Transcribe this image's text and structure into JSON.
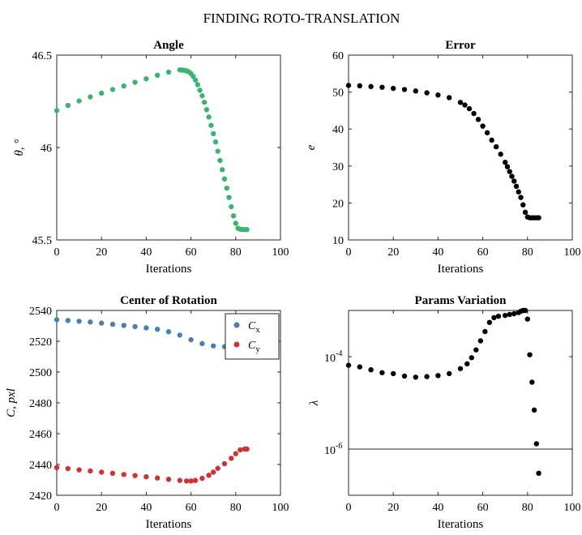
{
  "figure": {
    "title": "FINDING ROTO-TRANSLATION",
    "colors": {
      "green": "#3cb371",
      "black": "#000000",
      "blue": "#4a7fb5",
      "red": "#cc3333"
    }
  },
  "chart_data": [
    {
      "type": "scatter",
      "title": "Angle",
      "xlabel": "Iterations",
      "ylabel": "θ, °",
      "xlim": [
        0,
        100
      ],
      "ylim": [
        45.5,
        46.5
      ],
      "xticks": [
        "0",
        "20",
        "40",
        "60",
        "80",
        "100"
      ],
      "yticks": [
        "45.5",
        "46",
        "46.5"
      ],
      "series": [
        {
          "color": "#3cb371",
          "x": [
            0,
            5,
            10,
            15,
            20,
            25,
            30,
            35,
            40,
            45,
            50,
            55,
            56,
            57,
            58,
            59,
            60,
            61,
            62,
            63,
            64,
            65,
            66,
            67,
            68,
            69,
            70,
            71,
            72,
            73,
            74,
            75,
            76,
            77,
            78,
            79,
            80,
            81,
            82,
            83,
            84,
            85
          ],
          "y": [
            46.2,
            46.228,
            46.252,
            46.274,
            46.294,
            46.314,
            46.333,
            46.353,
            46.372,
            46.391,
            46.408,
            46.42,
            46.419,
            46.418,
            46.415,
            46.41,
            46.4,
            46.385,
            46.365,
            46.34,
            46.31,
            46.28,
            46.245,
            46.205,
            46.165,
            46.12,
            46.075,
            46.03,
            45.98,
            45.93,
            45.88,
            45.83,
            45.78,
            45.73,
            45.68,
            45.63,
            45.59,
            45.563,
            45.558,
            45.556,
            45.556,
            45.556
          ]
        }
      ]
    },
    {
      "type": "scatter",
      "title": "Error",
      "xlabel": "Iterations",
      "ylabel": "e",
      "xlim": [
        0,
        100
      ],
      "ylim": [
        10,
        60
      ],
      "xticks": [
        "0",
        "20",
        "40",
        "60",
        "80",
        "100"
      ],
      "yticks": [
        "10",
        "20",
        "30",
        "40",
        "50",
        "60"
      ],
      "series": [
        {
          "color": "#000000",
          "x": [
            0,
            5,
            10,
            15,
            20,
            25,
            30,
            35,
            40,
            45,
            50,
            52,
            54,
            56,
            58,
            60,
            62,
            64,
            66,
            68,
            70,
            71,
            72,
            73,
            74,
            75,
            76,
            77,
            78,
            79,
            80,
            81,
            82,
            83,
            84,
            85
          ],
          "y": [
            51.8,
            51.7,
            51.5,
            51.3,
            51.0,
            50.7,
            50.3,
            49.8,
            49.2,
            48.5,
            47.2,
            46.5,
            45.5,
            44.2,
            42.6,
            40.8,
            39.0,
            37.0,
            35.2,
            33.2,
            31.0,
            29.8,
            28.5,
            27.2,
            25.9,
            24.5,
            23.0,
            21.5,
            19.5,
            17.5,
            16.2,
            16.0,
            16.0,
            16.0,
            16.0,
            16.0
          ]
        }
      ]
    },
    {
      "type": "scatter",
      "title": "Center of Rotation",
      "xlabel": "Iterations",
      "ylabel": "C, pxl",
      "xlim": [
        0,
        100
      ],
      "ylim": [
        2420,
        2540
      ],
      "xticks": [
        "0",
        "20",
        "40",
        "60",
        "80",
        "100"
      ],
      "yticks": [
        "2420",
        "2440",
        "2460",
        "2480",
        "2500",
        "2520",
        "2540"
      ],
      "legend": {
        "position": "top-right"
      },
      "series": [
        {
          "name": "C",
          "subscript": "x",
          "color": "#4a7fb5",
          "x": [
            0,
            5,
            10,
            15,
            20,
            25,
            30,
            35,
            40,
            45,
            50,
            55,
            60,
            65,
            70,
            75,
            80,
            85
          ],
          "y": [
            2534,
            2533.5,
            2533,
            2532.5,
            2531.8,
            2531,
            2530.3,
            2529.5,
            2528.7,
            2527.8,
            2526.2,
            2524,
            2521,
            2518.5,
            2517,
            2516.5,
            2517,
            2517.5
          ]
        },
        {
          "name": "C",
          "subscript": "y",
          "color": "#cc3333",
          "x": [
            0,
            5,
            10,
            15,
            20,
            25,
            30,
            35,
            40,
            45,
            50,
            55,
            58,
            60,
            62,
            65,
            68,
            70,
            72,
            75,
            78,
            80,
            82,
            84,
            85
          ],
          "y": [
            2438,
            2437.3,
            2436.5,
            2435.8,
            2435,
            2434.3,
            2433.5,
            2432.8,
            2432,
            2431.2,
            2430.4,
            2429.6,
            2429.3,
            2429.3,
            2429.6,
            2431,
            2433,
            2435,
            2437.5,
            2440.5,
            2444,
            2447,
            2449.5,
            2450,
            2450
          ]
        }
      ]
    },
    {
      "type": "scatter",
      "title": "Params Variation",
      "xlabel": "Iterations",
      "ylabel": "λ",
      "xlim": [
        0,
        100
      ],
      "ylim": [
        1e-07,
        0.001
      ],
      "yscale": "log",
      "xticks": [
        "0",
        "20",
        "40",
        "60",
        "80",
        "100"
      ],
      "yticks": [
        {
          "base": "10",
          "exp": "-6",
          "value": 1e-06
        },
        {
          "base": "10",
          "exp": "-4",
          "value": 0.0001
        }
      ],
      "hline": 1e-06,
      "series": [
        {
          "color": "#000000",
          "x": [
            0,
            5,
            10,
            15,
            20,
            25,
            30,
            35,
            40,
            45,
            50,
            53,
            55,
            57,
            59,
            61,
            63,
            65,
            67,
            70,
            72,
            74,
            76,
            77,
            78,
            79,
            80,
            81,
            82,
            83,
            84,
            85
          ],
          "y": [
            6.5e-05,
            6e-05,
            5.2e-05,
            4.5e-05,
            4.3e-05,
            3.8e-05,
            3.6e-05,
            3.7e-05,
            3.9e-05,
            4.3e-05,
            5.5e-05,
            7e-05,
            9.5e-05,
            0.00014,
            0.00022,
            0.00035,
            0.00055,
            0.0007,
            0.00075,
            0.00078,
            0.00082,
            0.00085,
            0.0009,
            0.00096,
            0.001,
            0.001,
            0.00065,
            0.00011,
            2.8e-05,
            7e-06,
            1.3e-06,
            3e-07
          ]
        }
      ]
    }
  ]
}
